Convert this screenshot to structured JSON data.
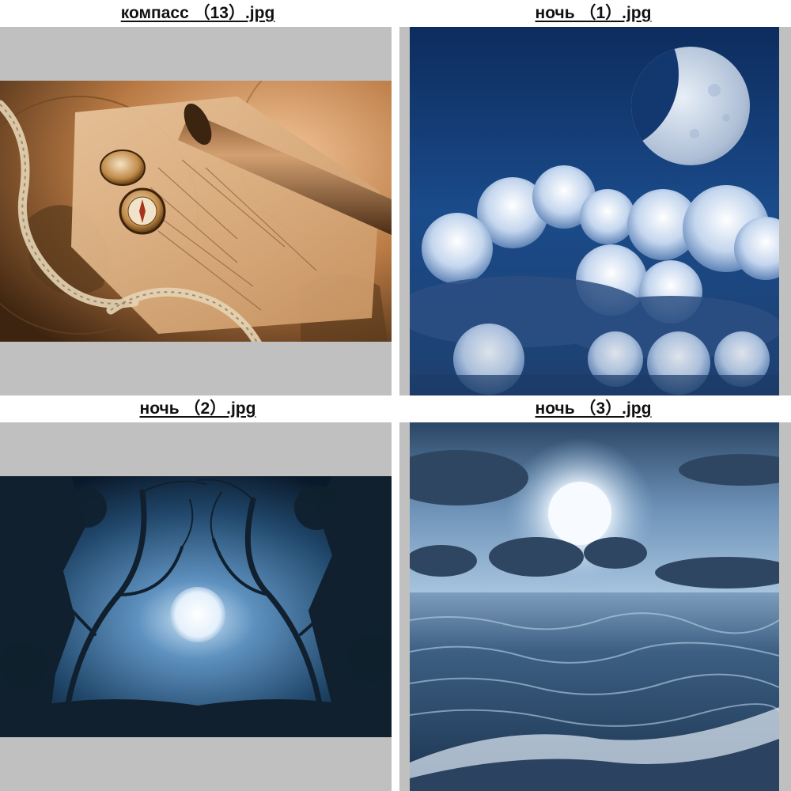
{
  "gallery": {
    "items": [
      {
        "filename": "компасс （13）.jpg",
        "icon": "compass-map-photo"
      },
      {
        "filename": "ночь （1）.jpg",
        "icon": "moon-clouds-photo"
      },
      {
        "filename": "ночь （2）.jpg",
        "icon": "moon-trees-photo"
      },
      {
        "filename": "ночь （3）.jpg",
        "icon": "moon-sea-photo"
      }
    ]
  },
  "colors": {
    "frame_background": "#c0c0c0",
    "caption_text": "#111111"
  }
}
